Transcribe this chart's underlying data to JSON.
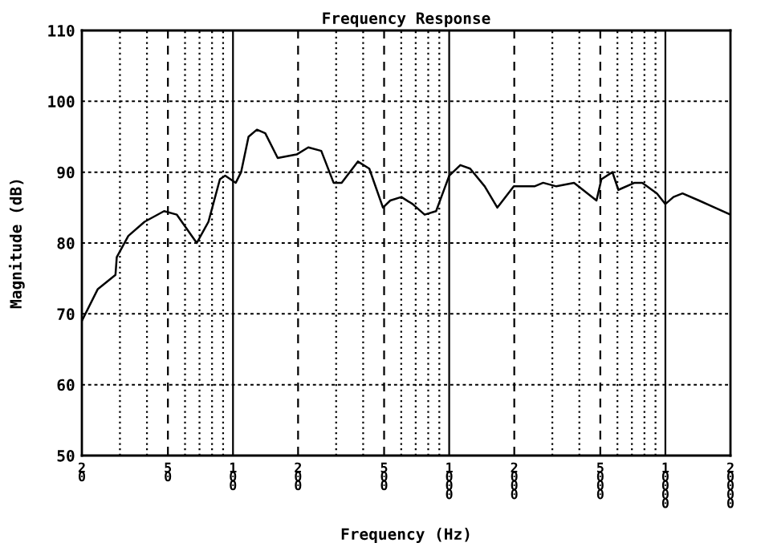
{
  "chart_data": {
    "type": "line",
    "title": "Frequency Response",
    "xlabel": "Frequency (Hz)",
    "ylabel": "Magnitude (dB)",
    "log": "x",
    "xlim": [
      20,
      20000
    ],
    "ylim": [
      50,
      110
    ],
    "xticks": [
      20,
      50,
      100,
      200,
      500,
      1000,
      2000,
      5000,
      10000,
      20000
    ],
    "yticks": [
      50,
      60,
      70,
      80,
      90,
      100,
      110
    ],
    "grid": true,
    "marker": "none",
    "line_style": "solid",
    "series": [
      {
        "color": "#000000",
        "x": [
          20,
          23.7,
          28.6,
          29,
          32.8,
          39,
          48,
          55,
          68,
          77,
          87,
          92,
          103,
          109,
          118,
          129,
          141,
          161,
          197,
          223,
          256,
          292,
          318,
          378,
          427,
          494,
          534,
          601,
          677,
          770,
          870,
          1000,
          1126,
          1250,
          1460,
          1670,
          1990,
          2480,
          2720,
          3130,
          3780,
          4800,
          5060,
          5690,
          6060,
          7200,
          7820,
          9140,
          10000,
          10900,
          12000,
          14300,
          20000
        ],
        "values": [
          69,
          73.5,
          75.5,
          78,
          81,
          83,
          84.5,
          84,
          80,
          83,
          89,
          89.5,
          88.5,
          90,
          95,
          96,
          95.5,
          92,
          92.5,
          93.5,
          93,
          88.5,
          88.5,
          91.5,
          90.5,
          85,
          86,
          86.5,
          85.5,
          84,
          84.5,
          89.5,
          91,
          90.5,
          88,
          85,
          88,
          88,
          88.5,
          88,
          88.5,
          86,
          89,
          90,
          87.5,
          88.5,
          88.5,
          87,
          85.5,
          86.5,
          87,
          86,
          84
        ]
      }
    ]
  }
}
